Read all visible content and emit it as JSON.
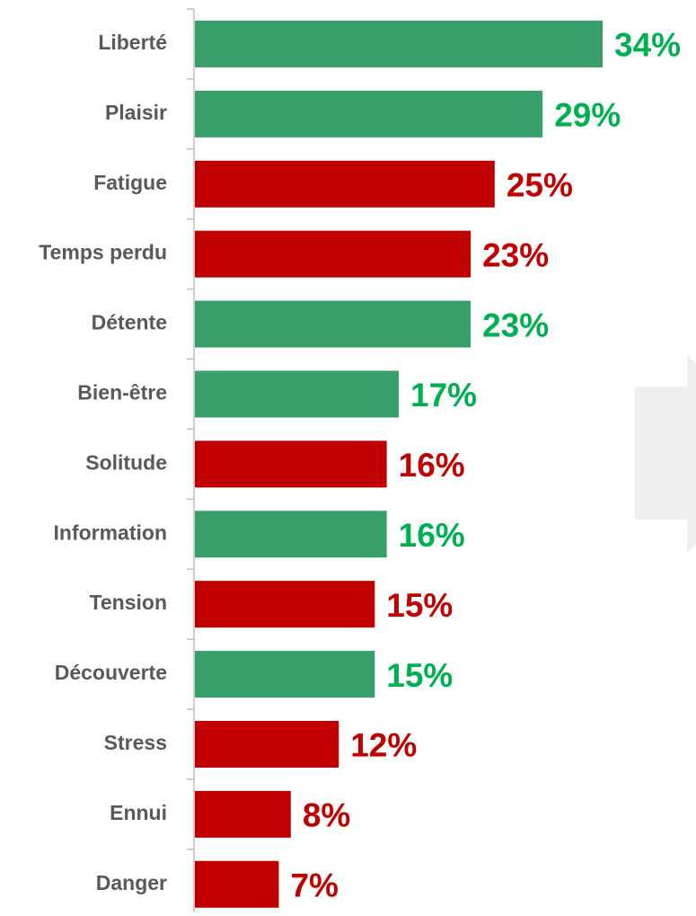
{
  "chart_data": {
    "type": "bar",
    "orientation": "horizontal",
    "categories": [
      "Liberté",
      "Plaisir",
      "Fatigue",
      "Temps perdu",
      "Détente",
      "Bien-être",
      "Solitude",
      "Information",
      "Tension",
      "Découverte",
      "Stress",
      "Ennui",
      "Danger"
    ],
    "values": [
      34,
      29,
      25,
      23,
      23,
      17,
      16,
      16,
      15,
      15,
      12,
      8,
      7
    ],
    "value_labels": [
      "34%",
      "29%",
      "25%",
      "23%",
      "23%",
      "17%",
      "16%",
      "16%",
      "15%",
      "15%",
      "12%",
      "8%",
      "7%"
    ],
    "colors": [
      "#389e6a",
      "#389e6a",
      "#c00000",
      "#c00000",
      "#389e6a",
      "#389e6a",
      "#c00000",
      "#389e6a",
      "#c00000",
      "#389e6a",
      "#c00000",
      "#c00000",
      "#c00000"
    ],
    "label_colors": [
      "#00b050",
      "#00b050",
      "#c00000",
      "#c00000",
      "#00b050",
      "#00b050",
      "#c00000",
      "#00b050",
      "#c00000",
      "#00b050",
      "#c00000",
      "#c00000",
      "#c00000"
    ]
  }
}
